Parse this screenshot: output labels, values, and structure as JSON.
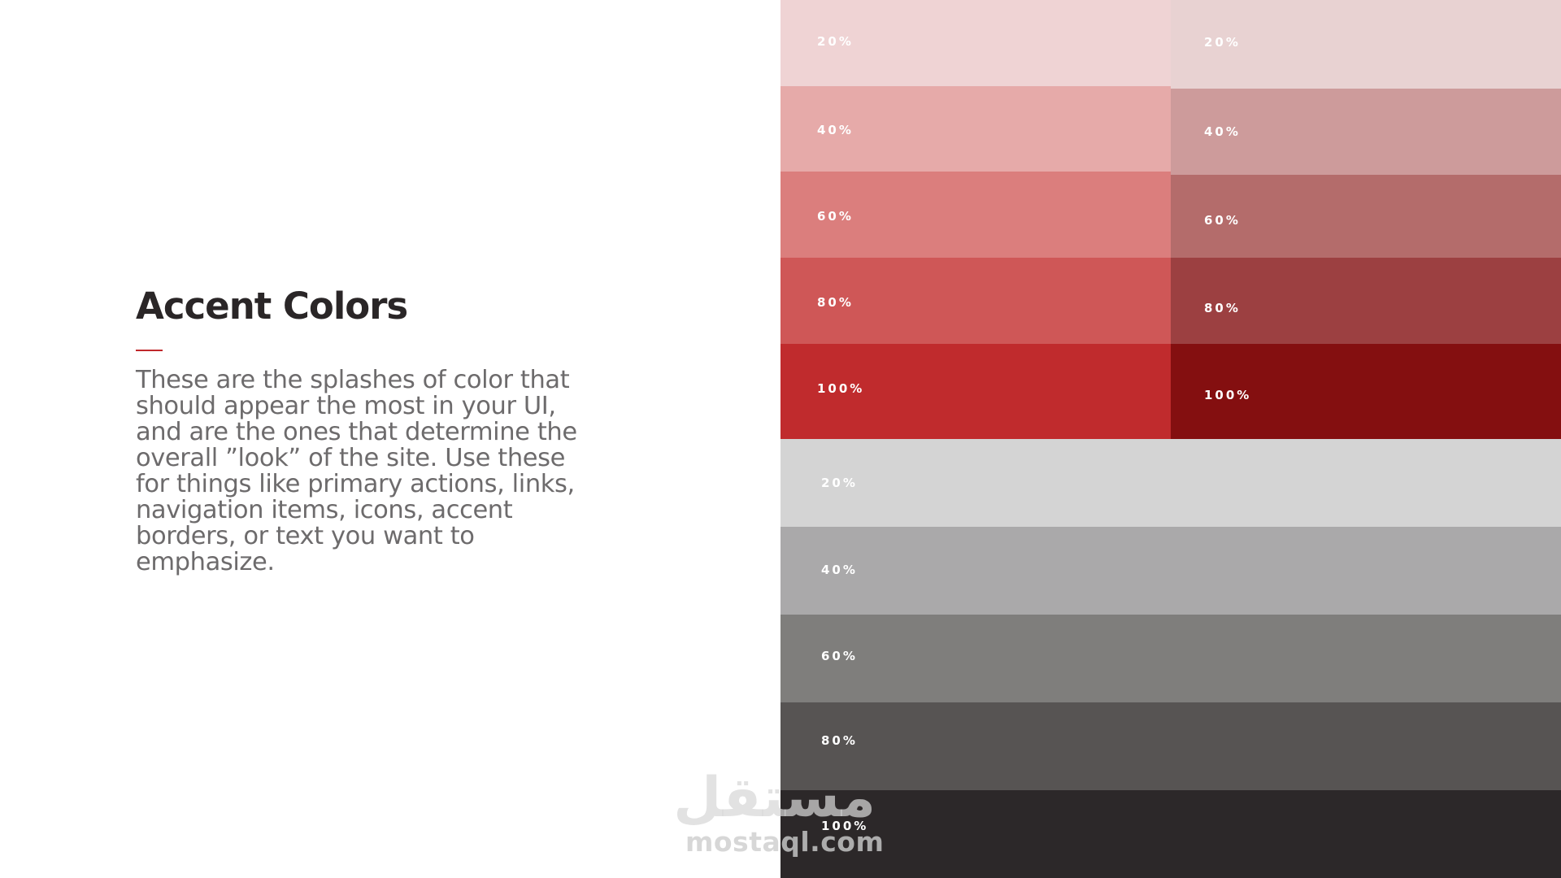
{
  "slide": {
    "heading": "Accent Colors",
    "accent_color": "#c0282b",
    "description": "These are the splashes of color that should appear the most in your UI, and are the ones that determine the overall ”look” of the site. Use these for things like primary actions, links, navigation items, icons, accent borders, or text you want to emphasize."
  },
  "palettes": [
    {
      "name": "red",
      "swatches": [
        {
          "label": "20%",
          "color": "#efd3d4"
        },
        {
          "label": "40%",
          "color": "#e6aaa9"
        },
        {
          "label": "60%",
          "color": "#db7e7d"
        },
        {
          "label": "80%",
          "color": "#cf5757"
        },
        {
          "label": "100%",
          "color": "#c02b2d"
        }
      ]
    },
    {
      "name": "dark-red",
      "swatches": [
        {
          "label": "20%",
          "color": "#e8d2d2"
        },
        {
          "label": "40%",
          "color": "#cd9b9b"
        },
        {
          "label": "60%",
          "color": "#b46c6b"
        },
        {
          "label": "80%",
          "color": "#9c4041"
        },
        {
          "label": "100%",
          "color": "#840f10"
        }
      ]
    },
    {
      "name": "gray",
      "swatches": [
        {
          "label": "20%",
          "color": "#d4d4d4"
        },
        {
          "label": "40%",
          "color": "#aaa9aa"
        },
        {
          "label": "60%",
          "color": "#7f7e7c"
        },
        {
          "label": "80%",
          "color": "#575453"
        },
        {
          "label": "100%",
          "color": "#2c2829"
        }
      ]
    }
  ],
  "watermark": {
    "arabic": "مستقل",
    "latin": "mostaql.com"
  }
}
